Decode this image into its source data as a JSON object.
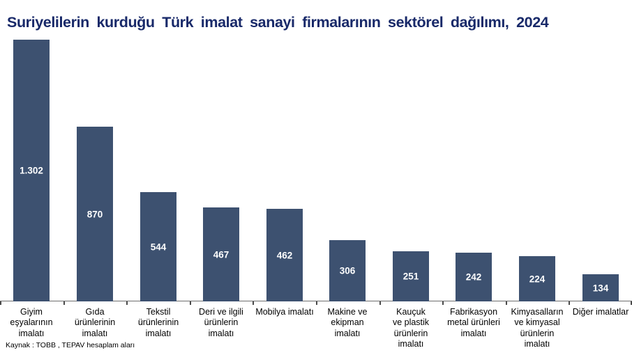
{
  "title": "Suriyelilerin kurduğu Türk imalat sanayi firmalarının sektörel dağılımı, 2024",
  "source": "Kaynak : TOBB , TEPAV  hesaplam aları",
  "colors": {
    "bar": "#3D5170",
    "title_text": "#182969",
    "value_label_text": "#FFFFFF",
    "axis_line": "#6E6E6E",
    "category_text": "#000000",
    "background": "#FFFFFF"
  },
  "chart_data": {
    "type": "bar",
    "title": "Suriyelilerin kurduğu Türk imalat sanayi firmalarının sektörel dağılımı, 2024",
    "categories": [
      "Giyim eşyalarının imalatı",
      "Gıda ürünlerinin imalatı",
      "Tekstil ürünlerinin imalatı",
      "Deri ve ilgili ürünlerin imalatı",
      "Mobilya imalatı",
      "Makine ve ekipman imalatı",
      "Kauçuk ve plastik ürünlerin imalatı",
      "Fabrikasyon metal ürünleri imalatı",
      "Kimyasalların ve kimyasal ürünlerin imalatı",
      "Diğer imalatlar"
    ],
    "category_lines": [
      [
        "Giyim",
        "eşyalarının",
        "imalatı"
      ],
      [
        "Gıda",
        "ürünlerinin",
        "imalatı"
      ],
      [
        "Tekstil",
        "ürünlerinin",
        "imalatı"
      ],
      [
        "Deri ve ilgili",
        "ürünlerin",
        "imalatı"
      ],
      [
        "Mobilya imalatı"
      ],
      [
        "Makine ve",
        "ekipman",
        "imalatı"
      ],
      [
        "Kauçuk",
        "ve plastik",
        "ürünlerin",
        "imalatı"
      ],
      [
        "Fabrikasyon",
        "metal ürünleri",
        "imalatı"
      ],
      [
        "Kimyasalların",
        "ve kimyasal",
        "ürünlerin",
        "imalatı"
      ],
      [
        "Diğer imalatlar"
      ]
    ],
    "values": [
      1302,
      870,
      544,
      467,
      462,
      306,
      251,
      242,
      224,
      134
    ],
    "value_labels": [
      "1.302",
      "870",
      "544",
      "467",
      "462",
      "306",
      "251",
      "242",
      "224",
      "134"
    ],
    "xlabel": "",
    "ylabel": "",
    "ylim": [
      0,
      1302
    ],
    "grid": false,
    "legend": false,
    "y_axis_visible": false,
    "data_labels_position": "inside-center",
    "source": "Kaynak : TOBB , TEPAV  hesaplam aları"
  }
}
